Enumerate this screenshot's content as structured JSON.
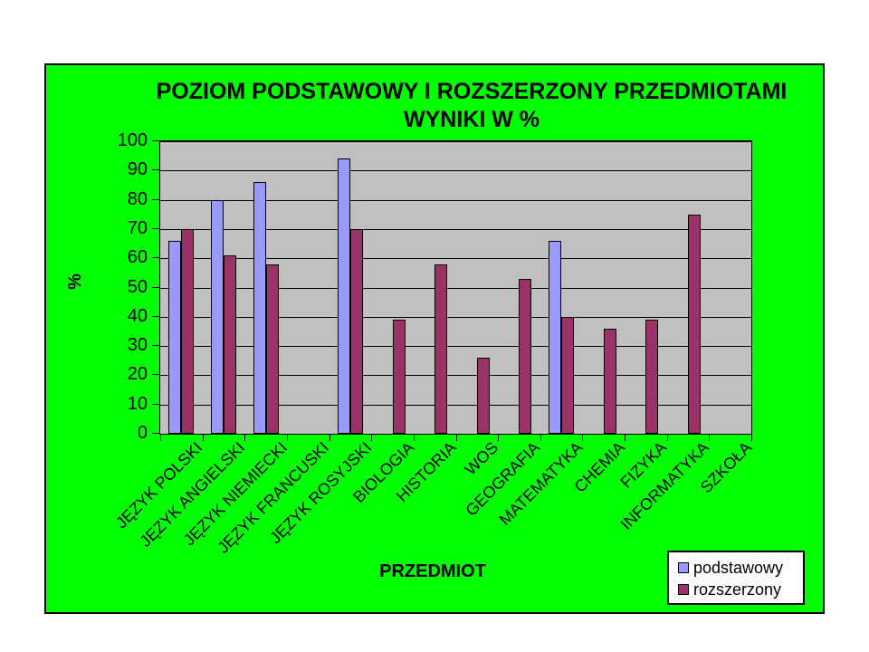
{
  "page": {
    "background": "#FFFFFF"
  },
  "chart": {
    "background": "#00FF00",
    "plot_background": "#C0C0C0",
    "line_color": "#000000",
    "title_line1": "POZIOM PODSTAWOWY I ROZSZERZONY PRZEDMIOTAMI",
    "title_line2": "WYNIKI W %"
  },
  "chart_data": {
    "type": "bar",
    "title": "POZIOM PODSTAWOWY I ROZSZERZONY PRZEDMIOTAMI WYNIKI W %",
    "xlabel": "PRZEDMIOT",
    "ylabel": "%",
    "ylim": [
      0,
      100
    ],
    "ytick_step": 10,
    "grid": true,
    "legend_position": "bottom-right",
    "categories": [
      "JĘZYK POLSKI",
      "JĘZYK ANGIELSKI",
      "JĘZYK NIEMIECKI",
      "JĘZYK FRANCUSKI",
      "JĘZYK ROSYJSKI",
      "BIOLOGIA",
      "HISTORIA",
      "WOS",
      "GEOGRAFIA",
      "MATEMATYKA",
      "CHEMIA",
      "FIZYKA",
      "INFORMATYKA",
      "SZKOŁA"
    ],
    "series": [
      {
        "name": "podstawowy",
        "color": "#9999FF",
        "values": [
          66,
          80,
          86,
          null,
          94,
          null,
          null,
          null,
          null,
          66,
          null,
          null,
          null,
          null
        ]
      },
      {
        "name": "rozszerzony",
        "color": "#993366",
        "values": [
          70,
          61,
          58,
          null,
          70,
          39,
          58,
          26,
          53,
          40,
          36,
          39,
          75,
          null
        ]
      }
    ]
  }
}
